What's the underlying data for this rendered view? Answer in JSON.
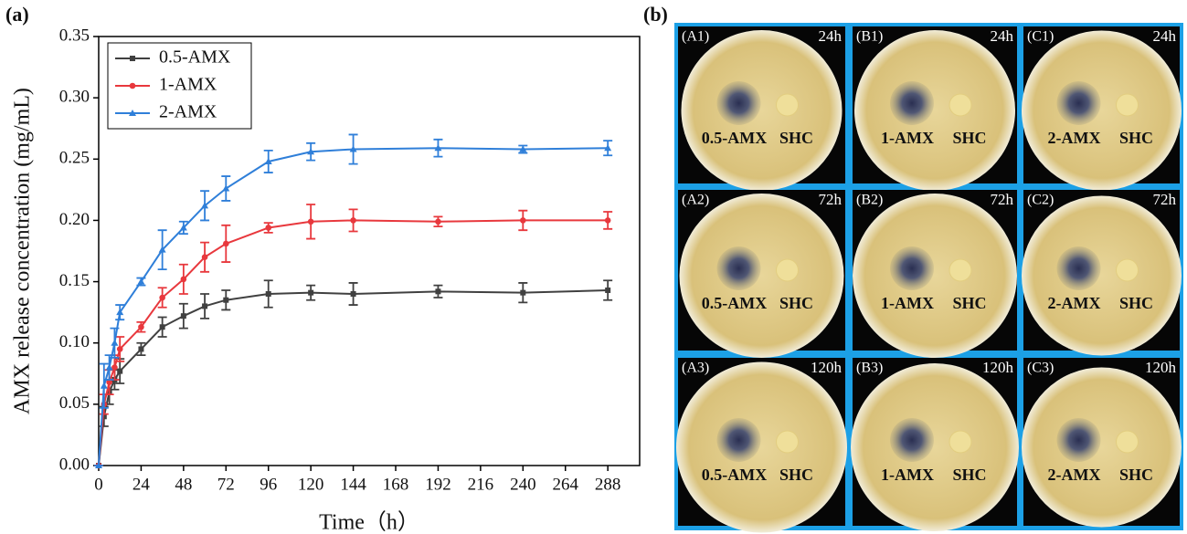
{
  "chart_data": {
    "type": "line",
    "xlabel": "Time（h）",
    "ylabel": "AMX release  concentration (mg/mL)",
    "x": [
      0,
      3,
      6,
      9,
      12,
      24,
      36,
      48,
      60,
      72,
      96,
      120,
      144,
      192,
      240,
      288
    ],
    "series": [
      {
        "name": "0.5-AMX",
        "color": "#404040",
        "marker": "square",
        "values": [
          0,
          0.04,
          0.06,
          0.07,
          0.077,
          0.095,
          0.113,
          0.122,
          0.13,
          0.135,
          0.14,
          0.141,
          0.14,
          0.142,
          0.141,
          0.143
        ],
        "errors": [
          0,
          0.008,
          0.01,
          0.008,
          0.01,
          0.005,
          0.008,
          0.01,
          0.01,
          0.008,
          0.011,
          0.006,
          0.009,
          0.005,
          0.008,
          0.008
        ]
      },
      {
        "name": "1-AMX",
        "color": "#e8383d",
        "marker": "circle",
        "values": [
          0,
          0.05,
          0.068,
          0.08,
          0.095,
          0.113,
          0.137,
          0.152,
          0.17,
          0.181,
          0.194,
          0.199,
          0.2,
          0.199,
          0.2,
          0.2
        ],
        "errors": [
          0,
          0.008,
          0.01,
          0.01,
          0.01,
          0.004,
          0.008,
          0.012,
          0.012,
          0.015,
          0.004,
          0.014,
          0.009,
          0.004,
          0.008,
          0.007
        ]
      },
      {
        "name": "2-AMX",
        "color": "#2f7fd9",
        "marker": "triangle",
        "values": [
          0,
          0.065,
          0.08,
          0.1,
          0.125,
          0.15,
          0.176,
          0.194,
          0.212,
          0.226,
          0.248,
          0.256,
          0.258,
          0.259,
          0.258,
          0.259
        ],
        "errors": [
          0,
          0.018,
          0.01,
          0.012,
          0.006,
          0.003,
          0.016,
          0.005,
          0.012,
          0.01,
          0.009,
          0.007,
          0.012,
          0.007,
          0.003,
          0.006
        ]
      }
    ],
    "xlim": [
      0,
      306
    ],
    "ylim": [
      0,
      0.35
    ],
    "xticks": [
      0,
      24,
      48,
      72,
      96,
      120,
      144,
      168,
      192,
      216,
      240,
      264,
      288
    ],
    "yticks": [
      {
        "value": 0,
        "label": "0.00"
      },
      {
        "value": 0.05,
        "label": "0.05"
      },
      {
        "value": 0.1,
        "label": "0.10"
      },
      {
        "value": 0.15,
        "label": "0.15"
      },
      {
        "value": 0.2,
        "label": "0.20"
      },
      {
        "value": 0.25,
        "label": "0.25"
      },
      {
        "value": 0.3,
        "label": "0.30"
      },
      {
        "value": 0.35,
        "label": "0.35"
      }
    ],
    "legend": "upper left",
    "grid": false
  },
  "panel_labels": [
    "(a)",
    "(b)"
  ],
  "plates": [
    {
      "id": "(A1)",
      "time": "24h",
      "left": "0.5-AMX",
      "right": "SHC"
    },
    {
      "id": "(B1)",
      "time": "24h",
      "left": "1-AMX",
      "right": "SHC"
    },
    {
      "id": "(C1)",
      "time": "24h",
      "left": "2-AMX",
      "right": "SHC"
    },
    {
      "id": "(A2)",
      "time": "72h",
      "left": "0.5-AMX",
      "right": "SHC"
    },
    {
      "id": "(B2)",
      "time": "72h",
      "left": "1-AMX",
      "right": "SHC"
    },
    {
      "id": "(C2)",
      "time": "72h",
      "left": "2-AMX",
      "right": "SHC"
    },
    {
      "id": "(A3)",
      "time": "120h",
      "left": "0.5-AMX",
      "right": "SHC"
    },
    {
      "id": "(B3)",
      "time": "120h",
      "left": "1-AMX",
      "right": "SHC"
    },
    {
      "id": "(C3)",
      "time": "120h",
      "left": "2-AMX",
      "right": "SHC"
    }
  ]
}
